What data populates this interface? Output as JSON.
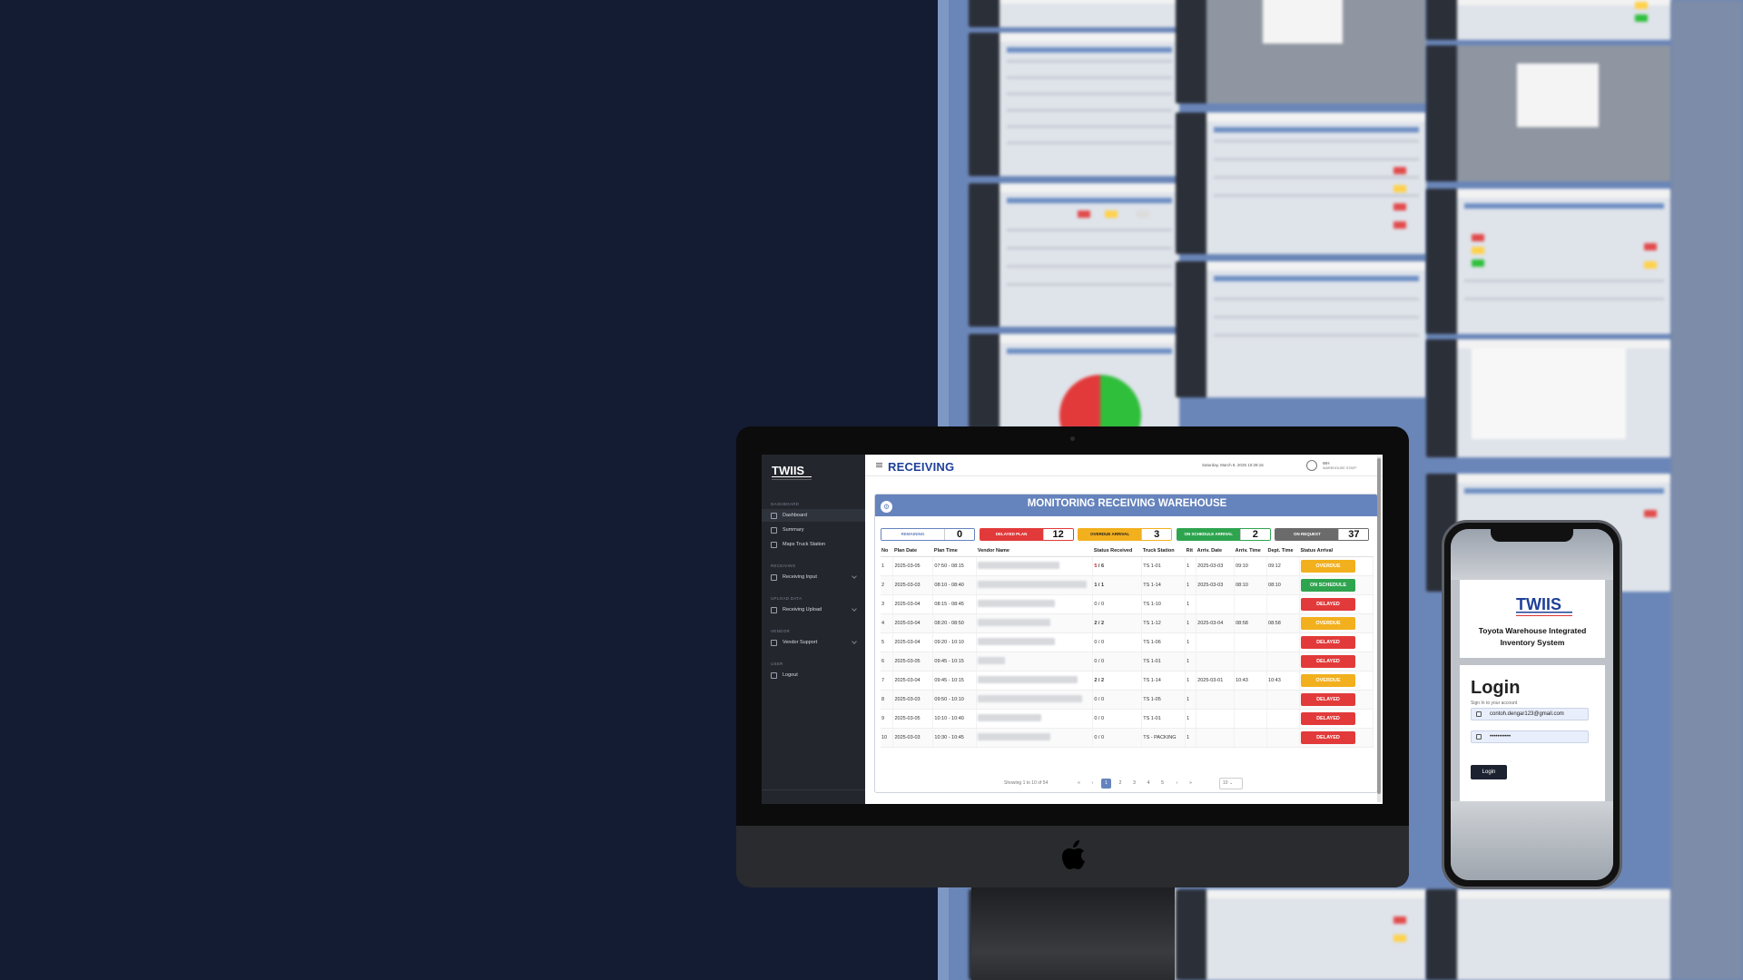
{
  "colors": {
    "background": "#141c33",
    "accent": "#6583bd",
    "overdue": "#f2b01e",
    "on_schedule": "#2ea44f",
    "delayed": "#e23a3a",
    "gray": "#6b6b6b"
  },
  "desktop": {
    "brand": "RECEIVING",
    "datetime": "Saturday, March 8, 2025 10:28:16",
    "user_name": "WH",
    "user_role": "WAREHOUSE STAFF",
    "sidebar": {
      "sections": [
        {
          "title": "DASHBOARD",
          "items": [
            {
              "label": "Dashboard",
              "icon": "dashboard-icon"
            },
            {
              "label": "Summary",
              "icon": "summary-icon"
            },
            {
              "label": "Maps Truck Station",
              "icon": "map-icon"
            }
          ]
        },
        {
          "title": "RECEIVING",
          "items": [
            {
              "label": "Receiving Input",
              "icon": "input-icon"
            }
          ]
        },
        {
          "title": "UPLOAD DATA",
          "items": [
            {
              "label": "Receiving Upload",
              "icon": "upload-icon"
            }
          ]
        },
        {
          "title": "VENDOR",
          "items": [
            {
              "label": "Vendor Support",
              "icon": "vendor-icon"
            }
          ]
        },
        {
          "title": "USER",
          "items": [
            {
              "label": "Logout",
              "icon": "logout-icon"
            }
          ]
        }
      ]
    },
    "panel_title": "MONITORING RECEIVING WAREHOUSE",
    "status_cards": [
      {
        "label": "REMAINING",
        "value": "0"
      },
      {
        "label": "DELAYED PLAN",
        "value": "12"
      },
      {
        "label": "OVERDUE ARRIVAL",
        "value": "3"
      },
      {
        "label": "ON SCHEDULE ARRIVAL",
        "value": "2"
      },
      {
        "label": "ON REQUEST",
        "value": "37"
      }
    ],
    "table": {
      "headers": [
        "No",
        "Plan Date",
        "Plan Time",
        "Vendor Name",
        "Status Received",
        "Truck Station",
        "Rit",
        "Arriv. Date",
        "Arriv. Time",
        "Dept. Time",
        "Status Arrival"
      ],
      "rows": [
        [
          "1",
          "2025-03-05",
          "07:50 - 08:15",
          "",
          "5 / 6",
          "TS 1-01",
          "1",
          "2025-03-03",
          "09:10",
          "09:12",
          "OVERDUE"
        ],
        [
          "2",
          "2025-03-03",
          "08:10 - 08:40",
          "",
          "1 / 1",
          "TS 1-14",
          "1",
          "2025-03-03",
          "08:10",
          "08:10",
          "ON SCHEDULE"
        ],
        [
          "3",
          "2025-03-04",
          "08:15 - 08:45",
          "",
          "0 / 0",
          "TS 1-10",
          "1",
          "",
          "",
          "",
          "DELAYED"
        ],
        [
          "4",
          "2025-03-04",
          "08:20 - 08:50",
          "",
          "2 / 2",
          "TS 1-12",
          "1",
          "2025-03-04",
          "08:58",
          "08:58",
          "OVERDUE"
        ],
        [
          "5",
          "2025-03-04",
          "09:20 - 10:10",
          "",
          "0 / 0",
          "TS 1-06",
          "1",
          "",
          "",
          "",
          "DELAYED"
        ],
        [
          "6",
          "2025-03-05",
          "09:45 - 10:15",
          "",
          "0 / 0",
          "TS 1-01",
          "1",
          "",
          "",
          "",
          "DELAYED"
        ],
        [
          "7",
          "2025-03-04",
          "09:45 - 10:15",
          "",
          "2 / 2",
          "TS 1-14",
          "1",
          "2025-03-01",
          "10:43",
          "10:43",
          "OVERDUE"
        ],
        [
          "8",
          "2025-03-03",
          "09:50 - 10:10",
          "",
          "0 / 0",
          "TS 1-05",
          "1",
          "",
          "",
          "",
          "DELAYED"
        ],
        [
          "9",
          "2025-03-05",
          "10:10 - 10:40",
          "",
          "0 / 0",
          "TS 1-01",
          "1",
          "",
          "",
          "",
          "DELAYED"
        ],
        [
          "10",
          "2025-03-03",
          "10:30 - 10:45",
          "",
          "0 / 0",
          "TS - PACKING",
          "1",
          "",
          "",
          "",
          "DELAYED"
        ]
      ]
    },
    "pagination": {
      "info": "Showing 1 to 10 of 54",
      "first": "«",
      "prev": "‹",
      "pages": [
        "1",
        "2",
        "3",
        "4",
        "5"
      ],
      "next": "›",
      "last": "»",
      "page_size": "10"
    }
  },
  "mobile": {
    "system_name": "Toyota Warehouse Integrated Inventory System",
    "login_title": "Login",
    "login_subtitle": "Sign In to your account",
    "email_value": "contoh.dengar123@gmail.com",
    "password_value": "•••••••••••",
    "login_button": "Login"
  }
}
